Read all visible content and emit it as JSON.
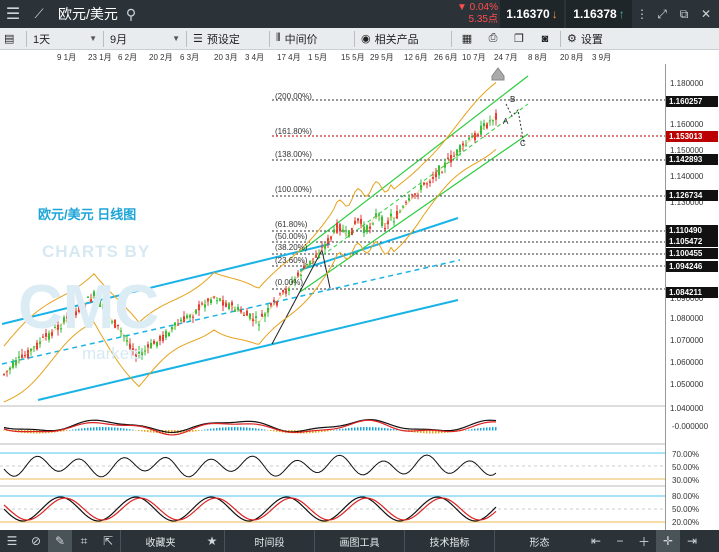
{
  "topbar": {
    "menu_icon": "hamburger-icon",
    "chart_icon": "chart-line-icon",
    "symbol": "欧元/美元",
    "change_pct": "▼ 0.04%",
    "change_pts": "5.35点",
    "sell_price": "1.16370",
    "buy_price": "1.16378",
    "window_icons": [
      "fullscreen-icon",
      "restore-icon",
      "close-icon"
    ]
  },
  "toolbar": {
    "interval": "1天",
    "period": "9月",
    "preset": "预设定",
    "price_type": "中间价",
    "related": "相关产品",
    "settings": "设置"
  },
  "dates": [
    "9 1月",
    "23 1月",
    "6 2月",
    "20 2月",
    "6 3月",
    "20 3月",
    "3 4月",
    "17 4月",
    "1 5月",
    "15 5月",
    "29 5月",
    "12 6月",
    "26 6月",
    "10 7月",
    "24 7月",
    "8 8月",
    "20 8月",
    "3 9月"
  ],
  "chart": {
    "title": "欧元/美元 日线图",
    "watermark_top": "CHARTS BY",
    "watermark_logo": "CMC",
    "watermark_bottom": "markets"
  },
  "price_axis": {
    "ticks": [
      "1.180000",
      "1.160000",
      "1.150000",
      "1.140000",
      "1.130000",
      "1.120000",
      "1.090000",
      "1.080000",
      "1.070000",
      "1.060000",
      "1.050000",
      "1.040000"
    ],
    "tags": [
      {
        "label": "1.160257",
        "color": "#111111"
      },
      {
        "label": "1.153013",
        "color": "#bb0000"
      },
      {
        "label": "1.142893",
        "color": "#111111"
      },
      {
        "label": "1.126734",
        "color": "#111111"
      },
      {
        "label": "1.110490",
        "color": "#111111"
      },
      {
        "label": "1.105472",
        "color": "#111111"
      },
      {
        "label": "1.100455",
        "color": "#111111"
      },
      {
        "label": "1.094246",
        "color": "#111111"
      },
      {
        "label": "1.084211",
        "color": "#111111"
      }
    ]
  },
  "fib_levels": [
    {
      "label": "(200.00%)"
    },
    {
      "label": "(161.80%)"
    },
    {
      "label": "(138.00%)"
    },
    {
      "label": "(100.00%)"
    },
    {
      "label": "(61.80%)"
    },
    {
      "label": "(50.00%)"
    },
    {
      "label": "(38.20%)"
    },
    {
      "label": "(23.60%)"
    },
    {
      "label": "(0.00%)"
    }
  ],
  "wave_labels": [
    "B",
    "A",
    "C"
  ],
  "macd_label": "-0.000000",
  "rsi_labels": [
    "70.00%",
    "50.00%",
    "30.00%"
  ],
  "stoch_labels": [
    "80.00%",
    "50.00%",
    "20.00%"
  ],
  "bottombar": {
    "favorites": "收藏夹",
    "timeframe": "时间段",
    "drawing_tools": "画图工具",
    "indicators": "技术指标",
    "patterns": "形态"
  }
}
